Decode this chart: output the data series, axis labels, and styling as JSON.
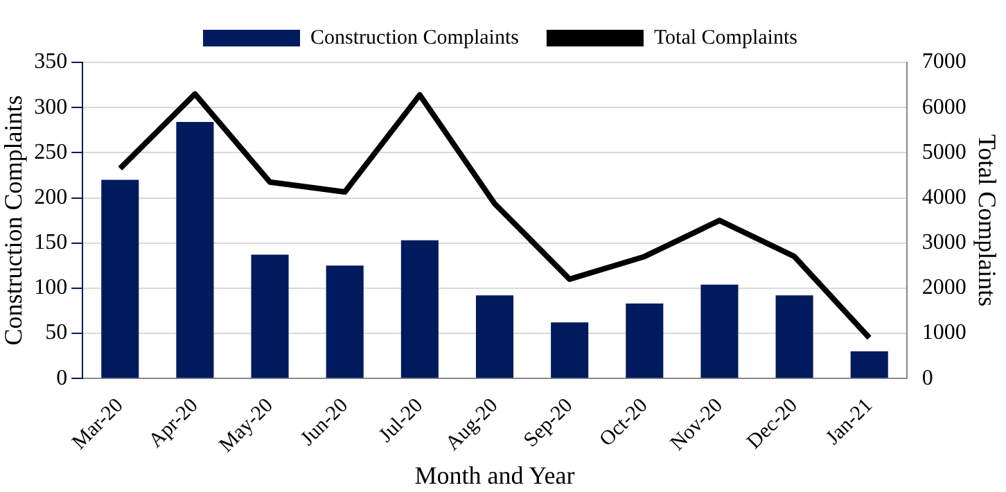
{
  "chart_data": {
    "type": "bar",
    "xlabel": "Month and Year",
    "ylabel": "Construction Complaints",
    "y2label": "Total Complaints",
    "categories": [
      "Mar-20",
      "Apr-20",
      "May-20",
      "Jun-20",
      "Jul-20",
      "Aug-20",
      "Sep-20",
      "Oct-20",
      "Nov-20",
      "Dec-20",
      "Jan-21"
    ],
    "series": [
      {
        "name": "Construction Complaints",
        "color": "#001a5e",
        "values": [
          220,
          284,
          137,
          125,
          153,
          92,
          62,
          83,
          104,
          92,
          30
        ]
      },
      {
        "name": "Total Complaints",
        "type": "line",
        "axis": "y2",
        "color": "#000000",
        "values": [
          4650,
          6300,
          4350,
          4130,
          6280,
          3870,
          2200,
          2700,
          3500,
          2700,
          900
        ]
      }
    ],
    "ylim": [
      0,
      350
    ],
    "yticks": [
      0,
      50,
      100,
      150,
      200,
      250,
      300,
      350
    ],
    "y2lim": [
      0,
      7000
    ],
    "y2ticks": [
      0,
      1000,
      2000,
      3000,
      4000,
      5000,
      6000,
      7000
    ],
    "grid": "y",
    "legend": "top",
    "marker": "none",
    "line_style": "solid"
  }
}
